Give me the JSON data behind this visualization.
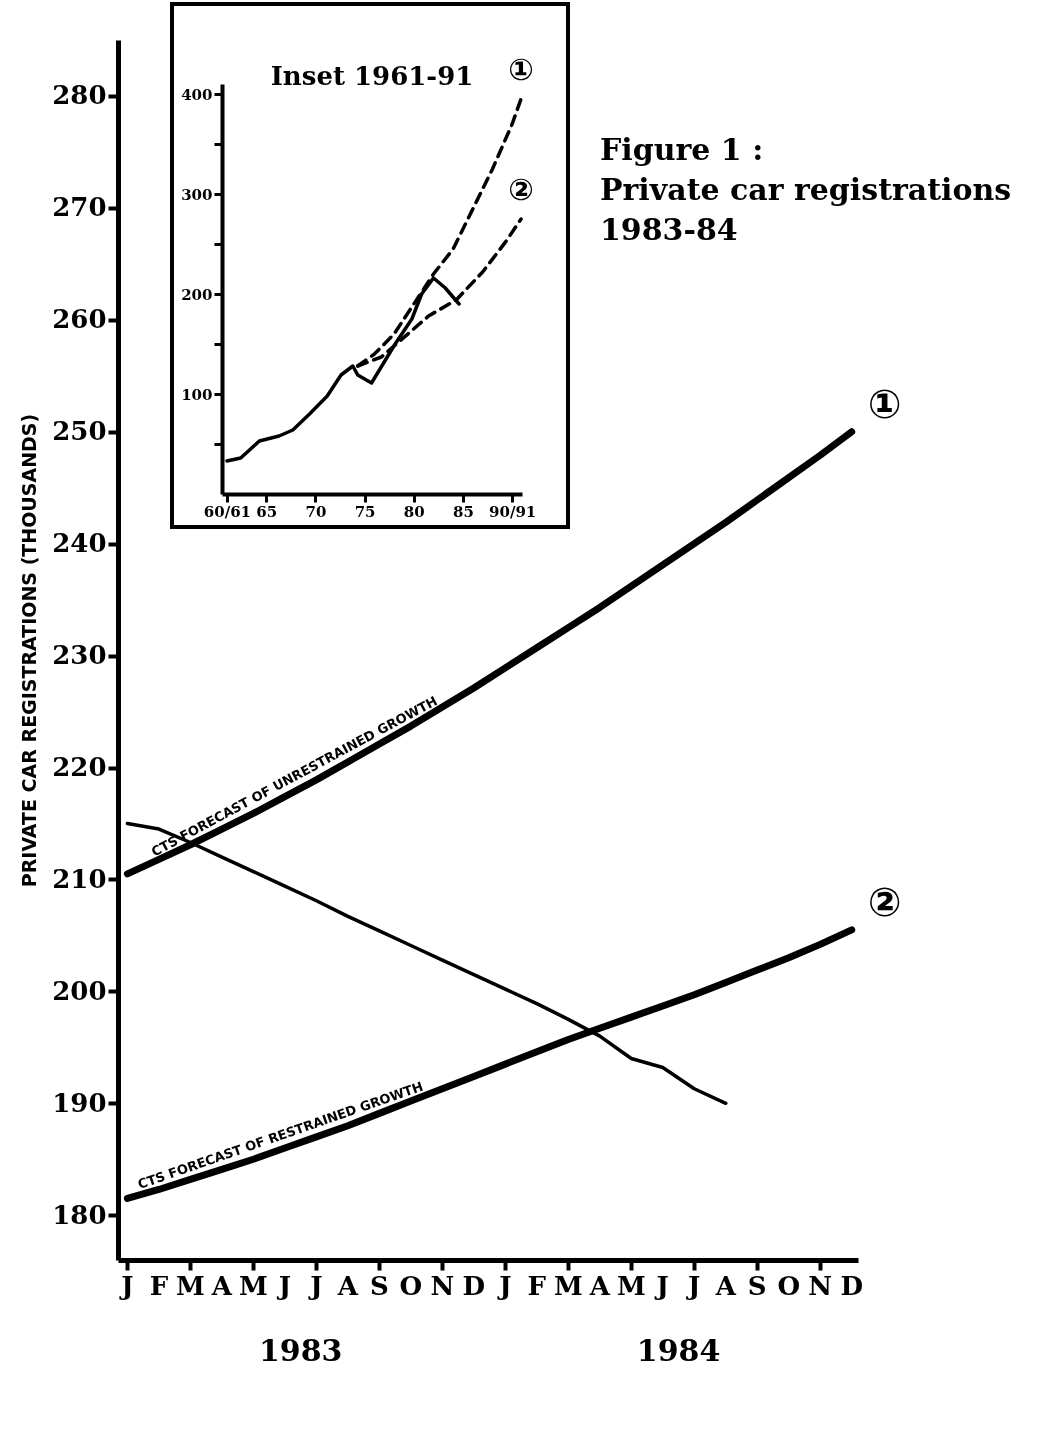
{
  "chart_data": [
    {
      "type": "line",
      "title": "Figure 1 :",
      "subtitle": "Private car registrations 1983-84",
      "ylabel": "PRIVATE CAR REGISTRATIONS (THOUSANDS)",
      "categories": [
        "J",
        "F",
        "M",
        "A",
        "M",
        "J",
        "J",
        "A",
        "S",
        "O",
        "N",
        "D",
        "J",
        "F",
        "M",
        "A",
        "M",
        "J",
        "J",
        "A",
        "S",
        "O",
        "N",
        "D"
      ],
      "ylim": [
        176,
        285
      ],
      "yticks": [
        180,
        190,
        200,
        210,
        220,
        230,
        240,
        250,
        260,
        270,
        280
      ],
      "series": [
        {
          "color": "#000000",
          "values": [
            215,
            214.5,
            213.3,
            212,
            210.7,
            209.4,
            208.1,
            206.7,
            205.4,
            204.1,
            202.8,
            201.5,
            200.2,
            198.9,
            197.5,
            196,
            194,
            193.2,
            191.3,
            190,
            null,
            null,
            null,
            null
          ]
        },
        {
          "name": "①",
          "color": "#000000",
          "values": [
            210.5,
            211.8,
            213.1,
            214.5,
            215.9,
            217.4,
            218.9,
            220.5,
            222.1,
            223.7,
            225.4,
            227.1,
            228.9,
            230.7,
            232.5,
            234.3,
            236.2,
            238.1,
            240,
            241.9,
            243.9,
            245.9,
            247.9,
            250
          ]
        },
        {
          "name": "②",
          "color": "#000000",
          "values": [
            181.5,
            182.3,
            183.2,
            184.1,
            185,
            186,
            187,
            188,
            189.1,
            190.2,
            191.3,
            192.4,
            193.5,
            194.6,
            195.7,
            196.7,
            197.7,
            198.7,
            199.7,
            200.8,
            201.9,
            203,
            204.2,
            205.5
          ]
        }
      ],
      "annotations": [
        "CTS FORECAST OF UNRESTRAINED GROWTH",
        "CTS FORECAST OF RESTRAINED GROWTH",
        "1983",
        "1984"
      ]
    },
    {
      "type": "line",
      "title": "Inset 1961-91",
      "xlim": [
        1960.5,
        1991
      ],
      "xticks": [
        {
          "value": 1961,
          "label": "60/61"
        },
        {
          "value": 1965,
          "label": "65"
        },
        {
          "value": 1970,
          "label": "70"
        },
        {
          "value": 1975,
          "label": "75"
        },
        {
          "value": 1980,
          "label": "80"
        },
        {
          "value": 1985,
          "label": "85"
        },
        {
          "value": 1990,
          "label": "90/91"
        }
      ],
      "ylim": [
        0,
        410
      ],
      "yticks": [
        {
          "value": 50,
          "label": null
        },
        100,
        {
          "value": 150,
          "label": null
        },
        200,
        {
          "value": 250,
          "label": null
        },
        300,
        {
          "value": 350,
          "label": null
        },
        400
      ],
      "series": [
        {
          "color": "#000000",
          "x": [
            1961,
            1962.4,
            1964.3,
            1966.3,
            1967.7,
            1969.4,
            1971.2,
            1972.6,
            1973.8,
            1974.3,
            1975.7,
            1978.1,
            1979.8,
            1980.8,
            1982,
            1983.2,
            1984.6
          ],
          "values": [
            33,
            36,
            53,
            58,
            64,
            80,
            98,
            119,
            128,
            119,
            111,
            150,
            175,
            200,
            216,
            206,
            190
          ]
        },
        {
          "name": "①",
          "color": "#000000",
          "line_style": "dashed",
          "x": [
            1974.3,
            1976,
            1978,
            1980,
            1982,
            1984,
            1986,
            1988,
            1990,
            1990.9
          ],
          "values": [
            128,
            140,
            160,
            190,
            220,
            245,
            285,
            325,
            370,
            395
          ]
        },
        {
          "name": "②",
          "color": "#000000",
          "line_style": "dashed",
          "x": [
            1974.3,
            1976.7,
            1981.5,
            1984.3,
            1987,
            1989.4,
            1990.9
          ],
          "values": [
            128,
            137,
            178,
            194,
            222,
            253,
            275
          ]
        }
      ]
    }
  ]
}
